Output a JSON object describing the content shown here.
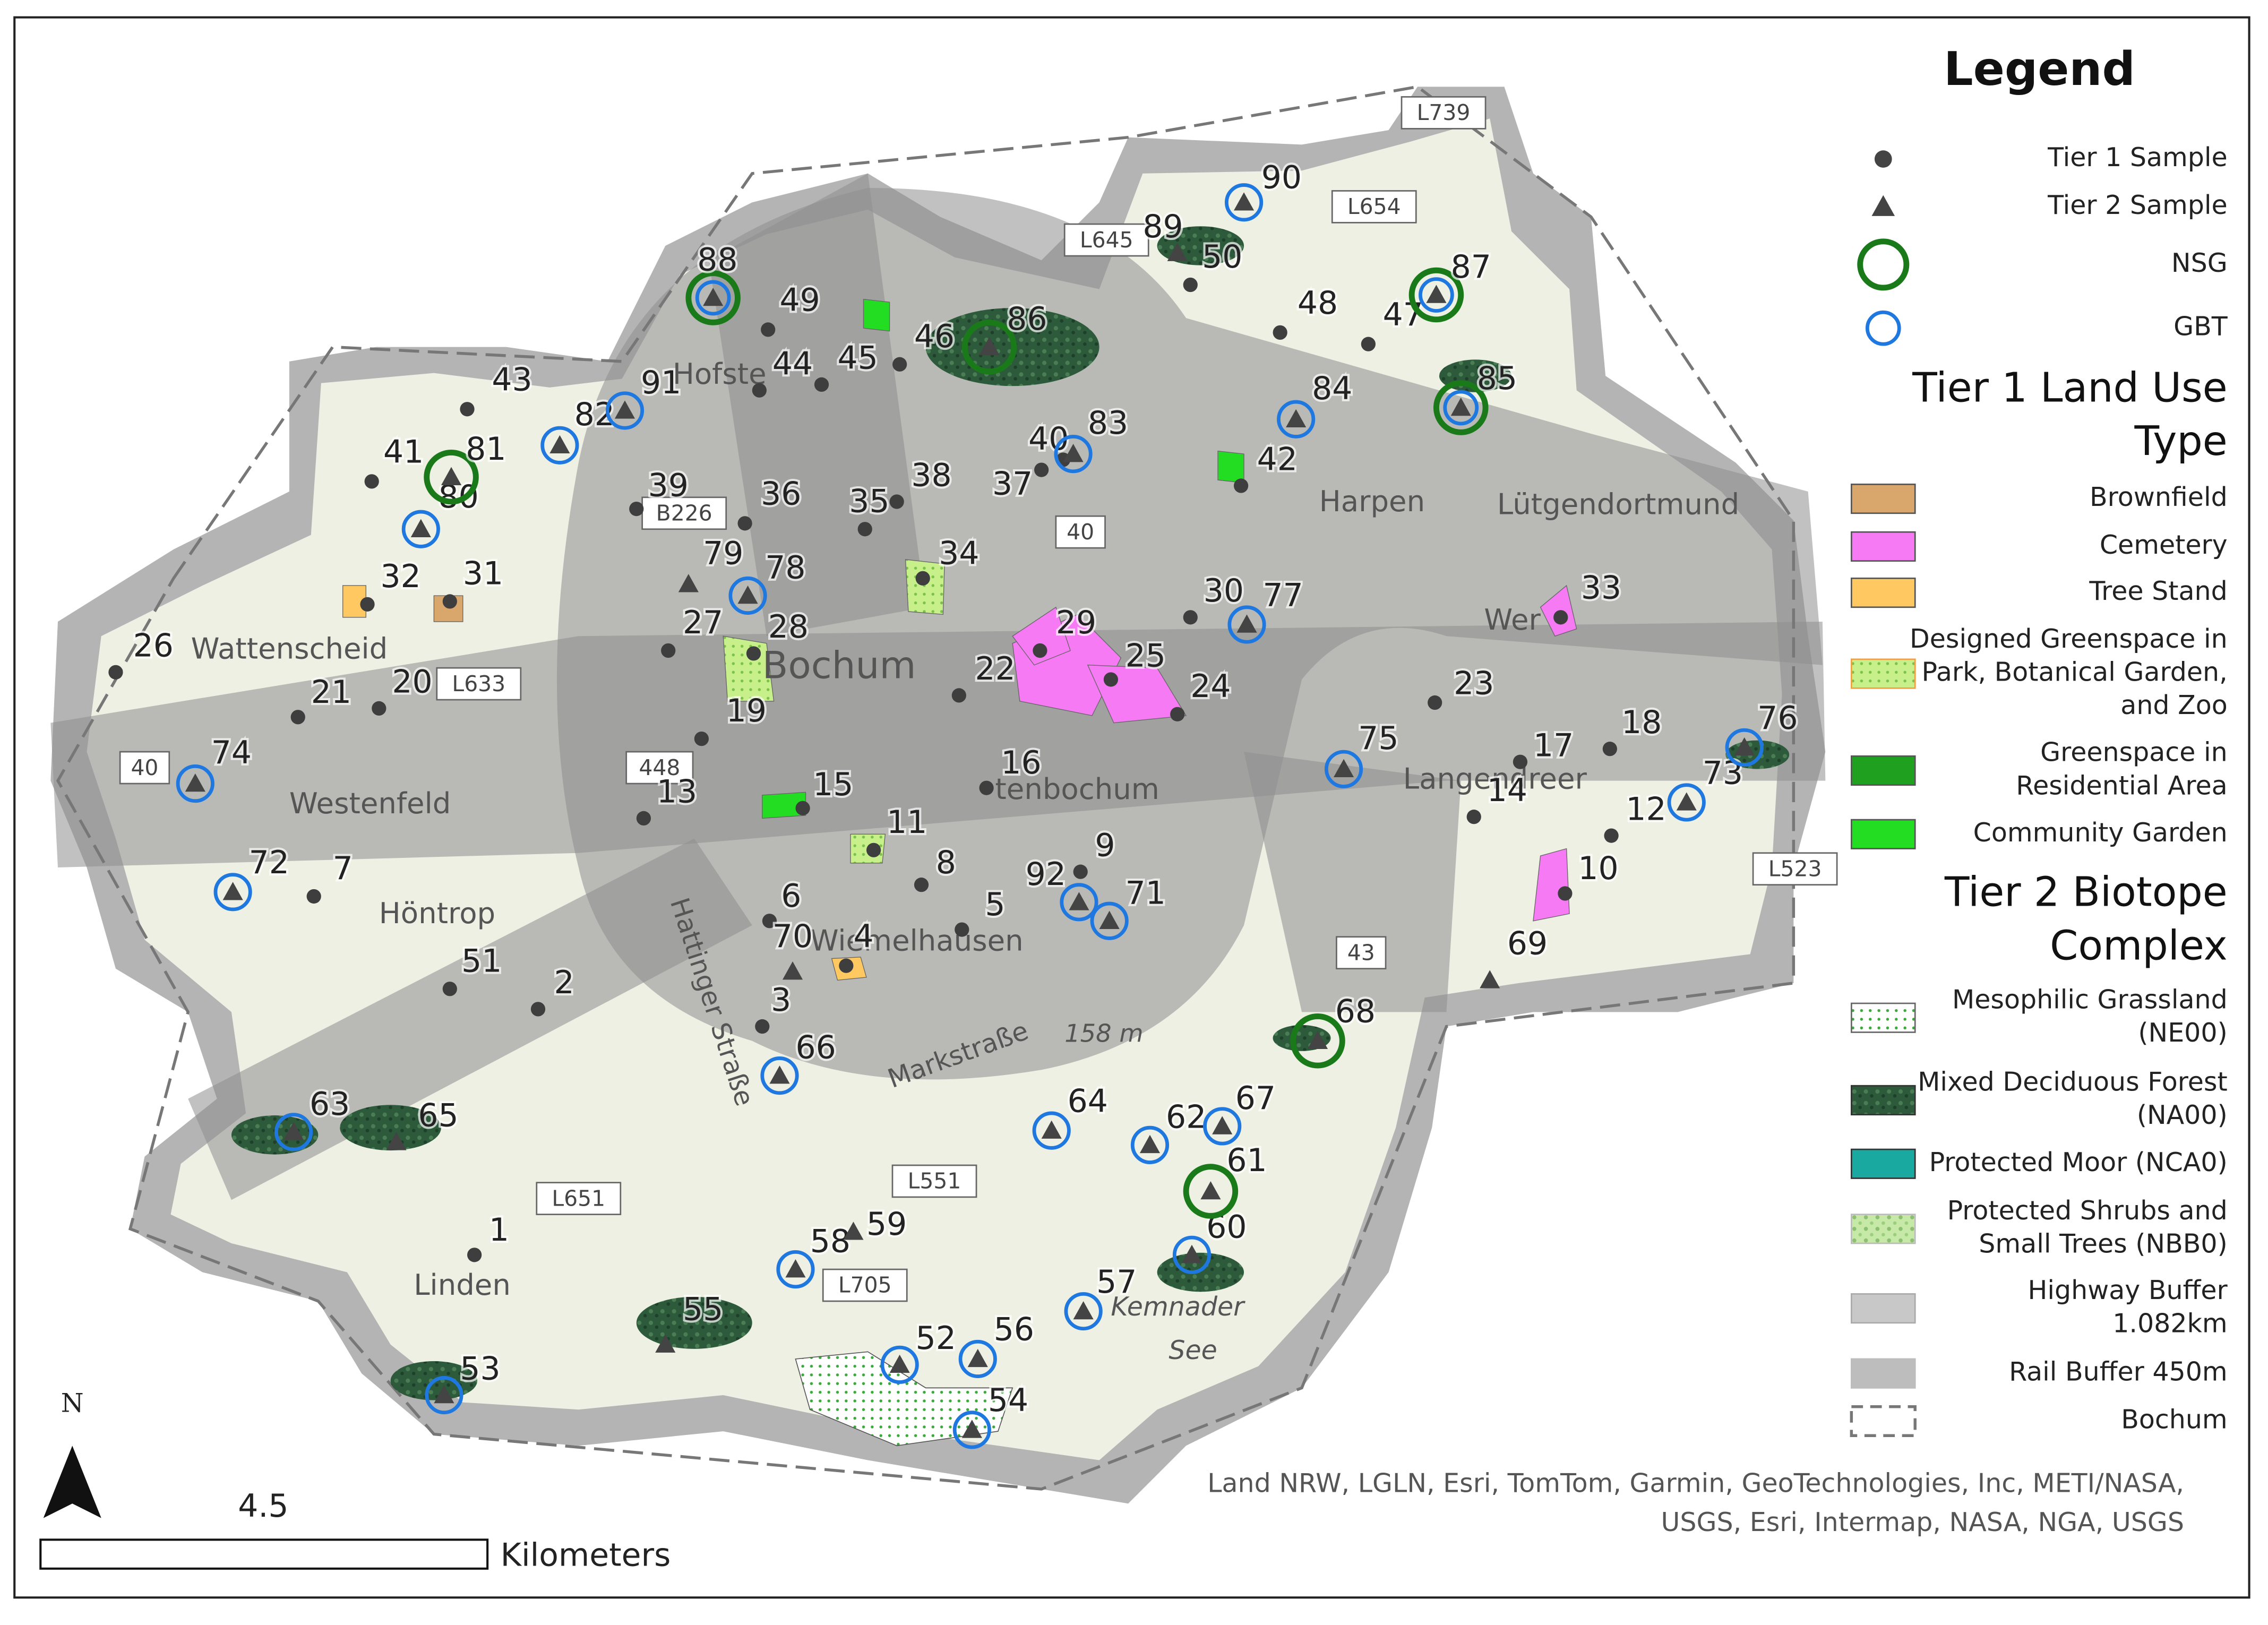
{
  "legend": {
    "title": "Legend",
    "samples": [
      "Tier 1 Sample",
      "Tier 2 Sample",
      "NSG",
      "GBT"
    ],
    "tier1_title": [
      "Tier 1 Land Use",
      "Type"
    ],
    "tier1_items": [
      [
        "Brownfield"
      ],
      [
        "Cemetery"
      ],
      [
        "Tree Stand"
      ],
      [
        "Designed Greenspace in",
        "Park, Botanical Garden,",
        "and Zoo"
      ],
      [
        "Greenspace in",
        "Residential Area"
      ],
      [
        "Community Garden"
      ]
    ],
    "tier2_title": [
      "Tier 2 Biotope",
      "Complex"
    ],
    "tier2_items": [
      [
        "Mesophilic Grassland",
        "(NE00)"
      ],
      [
        "Mixed Deciduous Forest",
        "(NA00)"
      ],
      [
        "Protected Moor (NCA0)"
      ],
      [
        "Protected Shrubs and",
        "Small Trees (NBB0)"
      ],
      [
        "Highway Buffer",
        "1.082km"
      ],
      [
        "Rail Buffer 450m"
      ],
      [
        "Bochum"
      ]
    ]
  },
  "map": {
    "points": [
      "1",
      "2",
      "3",
      "4",
      "5",
      "6",
      "7",
      "8",
      "9",
      "10",
      "11",
      "12",
      "13",
      "14",
      "15",
      "16",
      "17",
      "18",
      "19",
      "20",
      "21",
      "22",
      "23",
      "24",
      "25",
      "26",
      "27",
      "28",
      "29",
      "30",
      "31",
      "32",
      "33",
      "34",
      "35",
      "36",
      "37",
      "38",
      "39",
      "40",
      "41",
      "42",
      "43",
      "44",
      "45",
      "46",
      "47",
      "48",
      "49",
      "50",
      "51",
      "52",
      "53",
      "54",
      "55",
      "56",
      "57",
      "58",
      "59",
      "60",
      "61",
      "62",
      "63",
      "64",
      "65",
      "66",
      "67",
      "68",
      "69",
      "70",
      "71",
      "72",
      "73",
      "74",
      "75",
      "76",
      "77",
      "78",
      "79",
      "80",
      "81",
      "82",
      "83",
      "84",
      "85",
      "86",
      "87",
      "88",
      "89",
      "90",
      "91",
      "92"
    ],
    "places": [
      "Hofste",
      "Bochum",
      "Wattenscheid",
      "Westenfeld",
      "Höntrop",
      "Linden",
      "Harpen",
      "Lütgendortmund",
      "Wer",
      "Langendreer",
      "tenbochum",
      "Wiemelhausen",
      "Markstraße",
      "Hattinger Straße",
      "Kemnader",
      "See",
      "158 m"
    ],
    "roads": [
      "L739",
      "L654",
      "L645",
      "B226",
      "40",
      "40",
      "L633",
      "448",
      "43",
      "L523",
      "L551",
      "L651",
      "L705"
    ]
  },
  "scale": {
    "value": "4.5",
    "unit": "Kilometers",
    "north": "N"
  },
  "attribution": [
    "Land NRW, LGLN, Esri, TomTom, Garmin, GeoTechnologies, Inc, METI/NASA,",
    "USGS, Esri, Intermap, NASA, NGA, USGS"
  ]
}
